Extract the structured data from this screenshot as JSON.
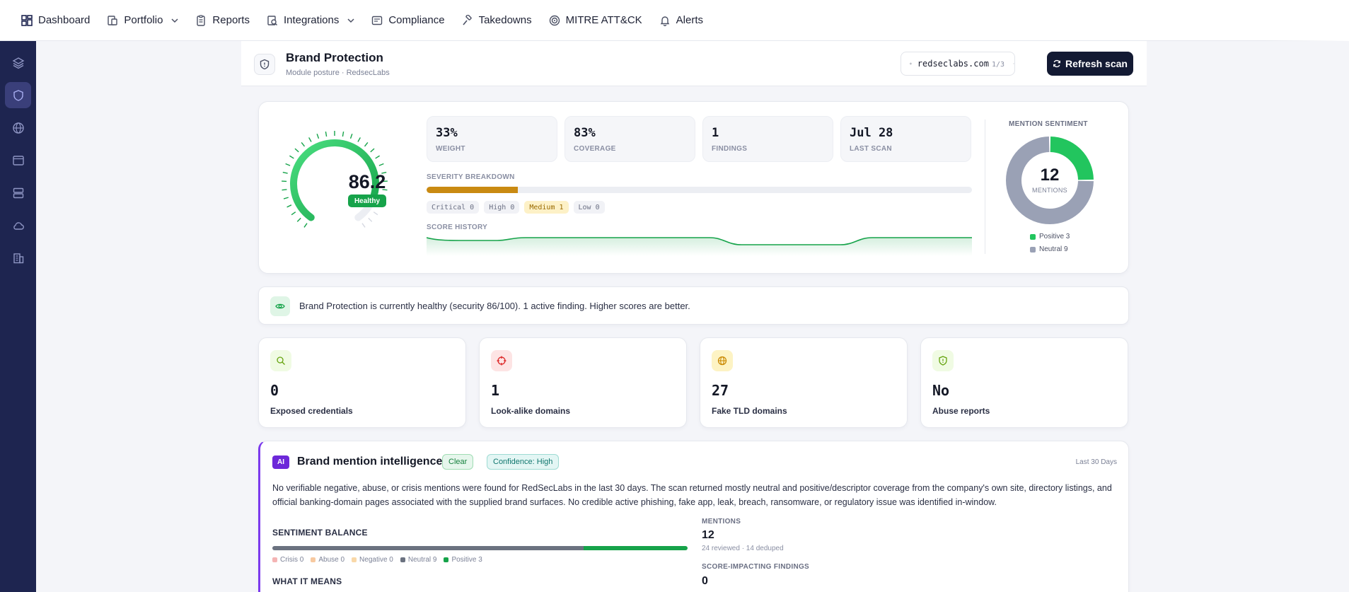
{
  "nav": {
    "dashboard": "Dashboard",
    "portfolio": "Portfolio",
    "reports": "Reports",
    "integrations": "Integrations",
    "compliance": "Compliance",
    "takedowns": "Takedowns",
    "mitre": "MITRE ATT&CK",
    "alerts": "Alerts"
  },
  "sidebar": {
    "icons": [
      "layers-icon",
      "shield-icon",
      "globe-icon",
      "browser-icon",
      "server-icon",
      "cloud-icon",
      "building-icon"
    ],
    "active_index": 1
  },
  "header": {
    "title": "Brand Protection",
    "subtitle": "Module posture · RedsecLabs",
    "domain": "redseclabs.com",
    "domain_count": "1/3",
    "refresh_label": "Refresh scan"
  },
  "score": {
    "value": "86.2",
    "fraction": 0.862,
    "status": "Healthy",
    "stats": [
      {
        "value": "33%",
        "label": "Weight"
      },
      {
        "value": "83%",
        "label": "Coverage"
      },
      {
        "value": "1",
        "label": "Findings"
      },
      {
        "value": "Jul 28",
        "label": "Last scan"
      }
    ],
    "severity_title": "Severity breakdown",
    "severity_fill": 0.167,
    "severity_chips": [
      "Critical 0",
      "High 0",
      "Medium 1",
      "Low 0"
    ],
    "history_title": "Score history"
  },
  "sentiment": {
    "title": "Mention sentiment",
    "total": "12",
    "unit": "MENTIONS",
    "positive_label": "Positive 3",
    "neutral_label": "Neutral 9",
    "positive": 3,
    "neutral": 9
  },
  "banner": {
    "text": "Brand Protection is currently healthy (security 86/100). 1 active finding. Higher scores are better."
  },
  "metrics": [
    {
      "value": "0",
      "label": "Exposed credentials"
    },
    {
      "value": "1",
      "label": "Look-alike domains"
    },
    {
      "value": "27",
      "label": "Fake TLD domains"
    },
    {
      "value": "No",
      "label": "Abuse reports"
    }
  ],
  "ai": {
    "badge": "AI",
    "title": "Brand mention intelligence",
    "status": "Clear",
    "confidence": "Confidence: High",
    "range": "Last 30 Days",
    "summary": "No verifiable negative, abuse, or crisis mentions were found for RedSecLabs in the last 30 days. The scan returned mostly neutral and positive/descriptor coverage from the company's own site, directory listings, and official banking-domain pages associated with the supplied brand surfaces. No credible active phishing, fake app, leak, breach, ransomware, or regulatory issue was identified in-window.",
    "balance_title": "SENTIMENT BALANCE",
    "legend": [
      "Crisis 0",
      "Abuse 0",
      "Negative 0",
      "Neutral 9",
      "Positive 3"
    ],
    "neutral_share": 0.75,
    "positive_share": 0.25,
    "what_title": "WHAT IT MEANS",
    "mentions_label": "Mentions",
    "mentions_value": "12",
    "mentions_sub": "24 reviewed · 14 deduped",
    "findings_label": "Score-impacting findings",
    "findings_value": "0"
  },
  "colors": {
    "accent": "#16a34a",
    "navy": "#1e2550",
    "medium": "#c98a12",
    "neutral": "#9aa1b5",
    "ai": "#7c3aed"
  }
}
